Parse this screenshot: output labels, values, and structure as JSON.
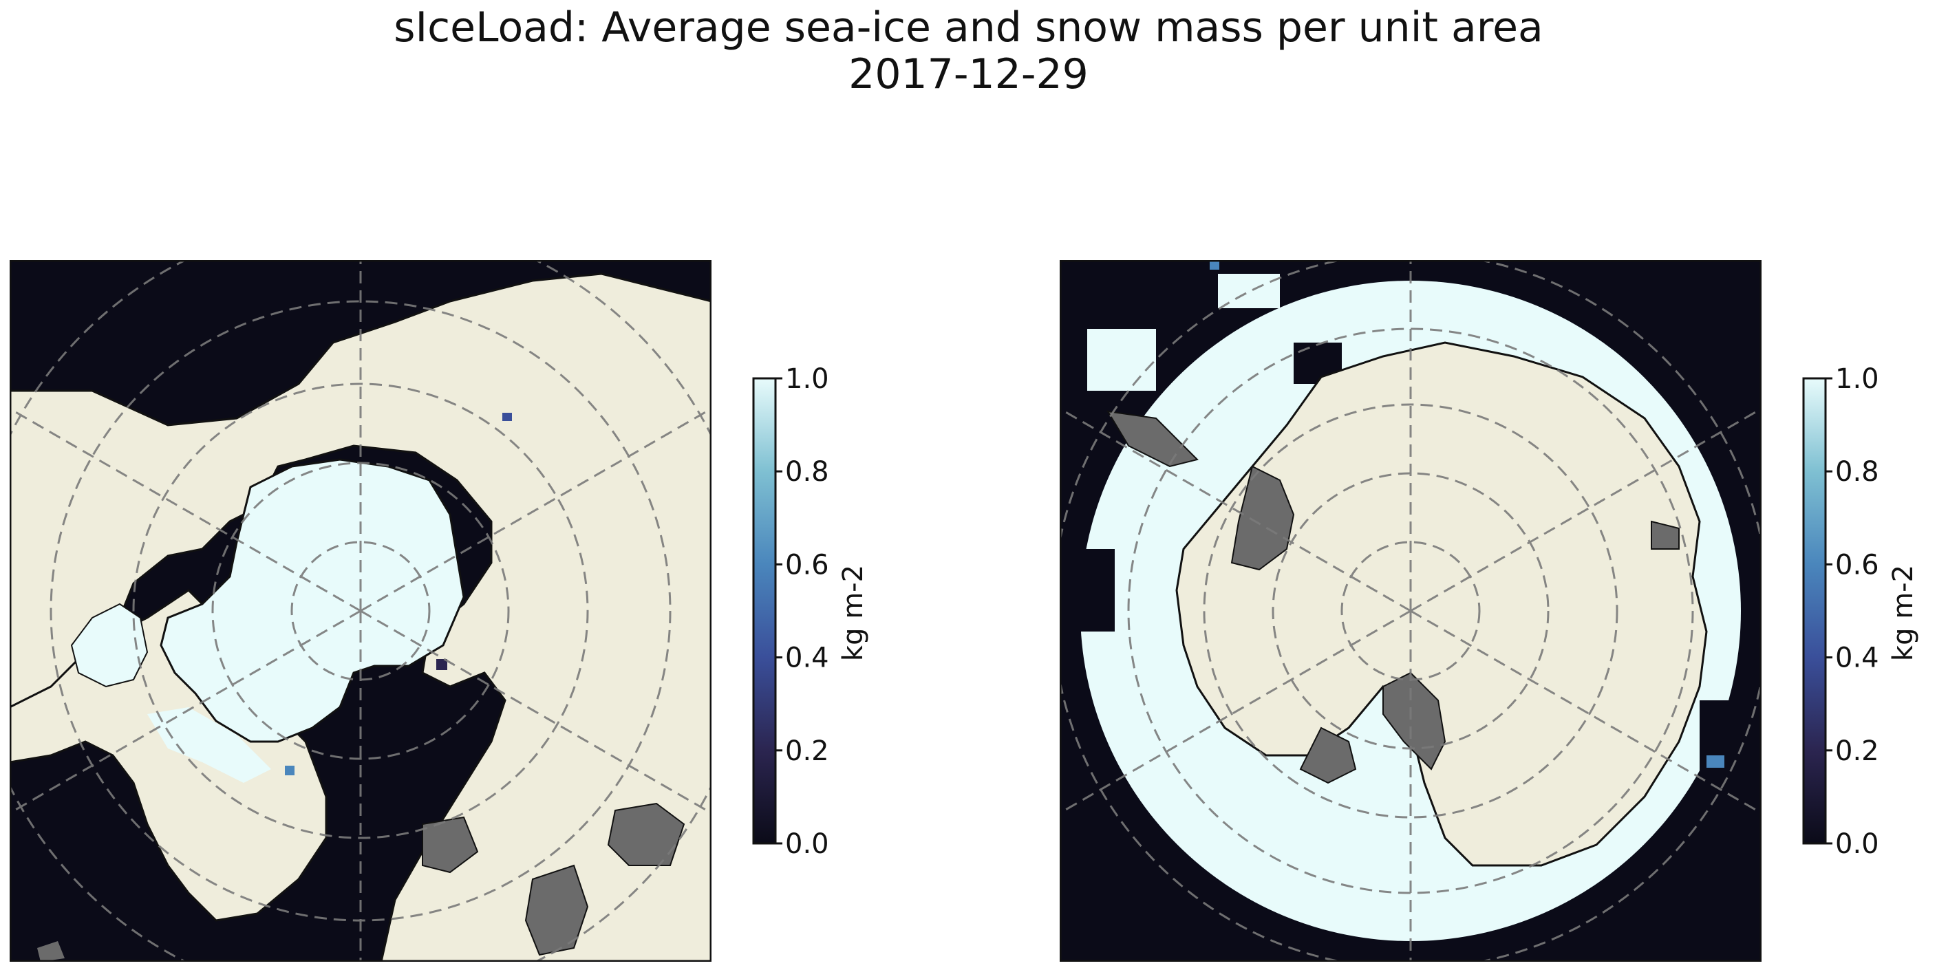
{
  "figure": {
    "title_line1": "sIceLoad: Average sea-ice and snow mass per unit area",
    "title_line2": "2017-12-29"
  },
  "colors": {
    "ocean": "#0b0b18",
    "land": "#efeddc",
    "ice": "#e8fbfb",
    "land_ice_shade": "#6b6b6b",
    "grid": "#7a7a7a",
    "coast": "#111111"
  },
  "chart_data": [
    {
      "type": "heatmap",
      "name": "",
      "projection": "north-polar-stereographic",
      "colorbar": {
        "label": "kg m-2",
        "range": [
          0.0,
          1.0
        ],
        "ticks": [
          0.0,
          0.2,
          0.4,
          0.6,
          0.8,
          1.0
        ],
        "tick_labels": [
          "0.0",
          "0.2",
          "0.4",
          "0.6",
          "0.8",
          "1.0"
        ],
        "colormap": [
          "#0b0b18",
          "#2b2550",
          "#3a4f9a",
          "#4a86bc",
          "#7fc0d2",
          "#e8fbfb"
        ]
      },
      "grid": true
    },
    {
      "type": "heatmap",
      "name": "",
      "projection": "south-polar-stereographic",
      "colorbar": {
        "label": "kg m-2",
        "range": [
          0.0,
          1.0
        ],
        "ticks": [
          0.0,
          0.2,
          0.4,
          0.6,
          0.8,
          1.0
        ],
        "tick_labels": [
          "0.0",
          "0.2",
          "0.4",
          "0.6",
          "0.8",
          "1.0"
        ],
        "colormap": [
          "#0b0b18",
          "#2b2550",
          "#3a4f9a",
          "#4a86bc",
          "#7fc0d2",
          "#e8fbfb"
        ]
      },
      "grid": true
    }
  ]
}
